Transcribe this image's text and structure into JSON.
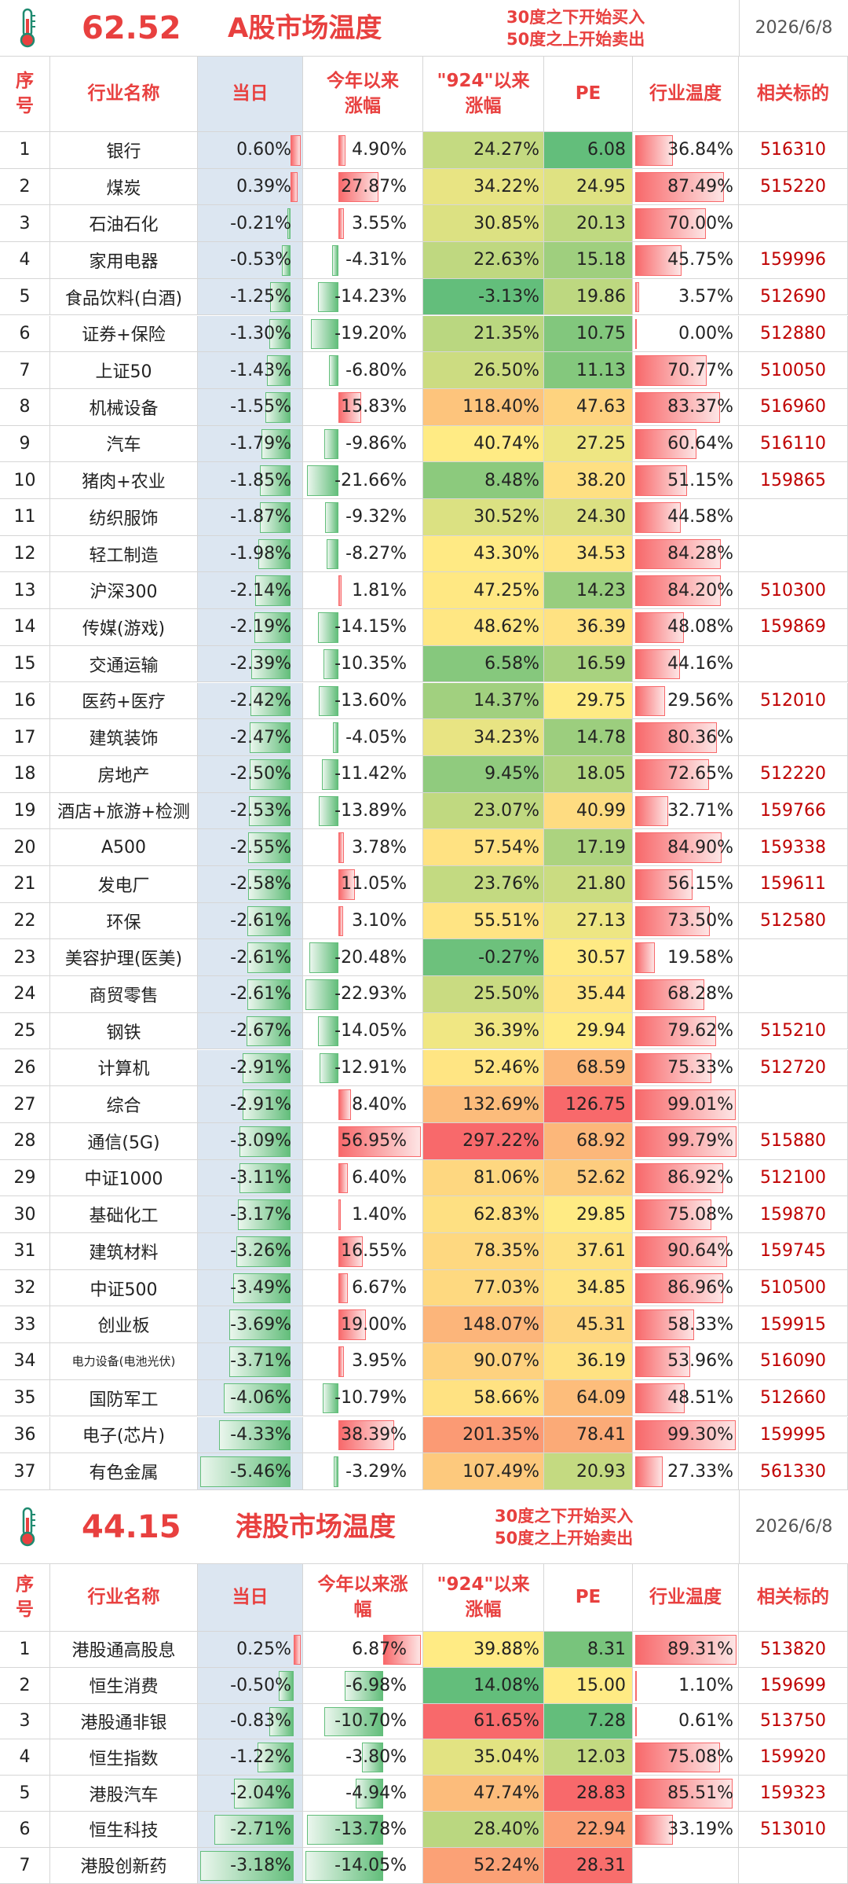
{
  "tables": [
    {
      "header": {
        "temperature": "62.52",
        "title": "A股市场温度",
        "notes": [
          "30度之下开始买入",
          "50度之上开始卖出"
        ],
        "date": "2026/6/8"
      },
      "columns": [
        "序号",
        "行业名称",
        "当日",
        "今年以来涨幅",
        "\"924\"以来涨幅",
        "PE",
        "行业温度",
        "相关标的"
      ],
      "rows": [
        [
          1,
          "银行",
          "0.60%",
          "4.90%",
          "24.27%",
          "6.08",
          "36.84%",
          "516310"
        ],
        [
          2,
          "煤炭",
          "0.39%",
          "27.87%",
          "34.22%",
          "24.95",
          "87.49%",
          "515220"
        ],
        [
          3,
          "石油石化",
          "-0.21%",
          "3.55%",
          "30.85%",
          "20.13",
          "70.00%",
          null
        ],
        [
          4,
          "家用电器",
          "-0.53%",
          "-4.31%",
          "22.63%",
          "15.18",
          "45.75%",
          "159996"
        ],
        [
          5,
          "食品饮料(白酒)",
          "-1.25%",
          "-14.23%",
          "-3.13%",
          "19.86",
          "3.57%",
          "512690"
        ],
        [
          6,
          "证券+保险",
          "-1.30%",
          "-19.20%",
          "21.35%",
          "10.75",
          "0.00%",
          "512880"
        ],
        [
          7,
          "上证50",
          "-1.43%",
          "-6.80%",
          "26.50%",
          "11.13",
          "70.77%",
          "510050"
        ],
        [
          8,
          "机械设备",
          "-1.55%",
          "15.83%",
          "118.40%",
          "47.63",
          "83.37%",
          "516960"
        ],
        [
          9,
          "汽车",
          "-1.79%",
          "-9.86%",
          "40.74%",
          "27.25",
          "60.64%",
          "516110"
        ],
        [
          10,
          "猪肉+农业",
          "-1.85%",
          "-21.66%",
          "8.48%",
          "38.20",
          "51.15%",
          "159865"
        ],
        [
          11,
          "纺织服饰",
          "-1.87%",
          "-9.32%",
          "30.52%",
          "24.30",
          "44.58%",
          null
        ],
        [
          12,
          "轻工制造",
          "-1.98%",
          "-8.27%",
          "43.30%",
          "34.53",
          "84.28%",
          null
        ],
        [
          13,
          "沪深300",
          "-2.14%",
          "1.81%",
          "47.25%",
          "14.23",
          "84.20%",
          "510300"
        ],
        [
          14,
          "传媒(游戏)",
          "-2.19%",
          "-14.15%",
          "48.62%",
          "36.39",
          "48.08%",
          "159869"
        ],
        [
          15,
          "交通运输",
          "-2.39%",
          "-10.35%",
          "6.58%",
          "16.59",
          "44.16%",
          null
        ],
        [
          16,
          "医药+医疗",
          "-2.42%",
          "-13.60%",
          "14.37%",
          "29.75",
          "29.56%",
          "512010"
        ],
        [
          17,
          "建筑装饰",
          "-2.47%",
          "-4.05%",
          "34.23%",
          "14.78",
          "80.36%",
          null
        ],
        [
          18,
          "房地产",
          "-2.50%",
          "-11.42%",
          "9.45%",
          "18.05",
          "72.65%",
          "512220"
        ],
        [
          19,
          "酒店+旅游+检测",
          "-2.53%",
          "-13.89%",
          "23.07%",
          "40.99",
          "32.71%",
          "159766"
        ],
        [
          20,
          "A500",
          "-2.55%",
          "3.78%",
          "57.54%",
          "17.19",
          "84.90%",
          "159338"
        ],
        [
          21,
          "发电厂",
          "-2.58%",
          "11.05%",
          "23.76%",
          "21.80",
          "56.15%",
          "159611"
        ],
        [
          22,
          "环保",
          "-2.61%",
          "3.10%",
          "55.51%",
          "27.13",
          "73.50%",
          "512580"
        ],
        [
          23,
          "美容护理(医美)",
          "-2.61%",
          "-20.48%",
          "-0.27%",
          "30.57",
          "19.58%",
          null
        ],
        [
          24,
          "商贸零售",
          "-2.61%",
          "-22.93%",
          "25.50%",
          "35.44",
          "68.28%",
          null
        ],
        [
          25,
          "钢铁",
          "-2.67%",
          "-14.05%",
          "36.39%",
          "29.94",
          "79.62%",
          "515210"
        ],
        [
          26,
          "计算机",
          "-2.91%",
          "-12.91%",
          "52.46%",
          "68.59",
          "75.33%",
          "512720"
        ],
        [
          27,
          "综合",
          "-2.91%",
          "8.40%",
          "132.69%",
          "126.75",
          "99.01%",
          null
        ],
        [
          28,
          "通信(5G)",
          "-3.09%",
          "56.95%",
          "297.22%",
          "68.92",
          "99.79%",
          "515880"
        ],
        [
          29,
          "中证1000",
          "-3.11%",
          "6.40%",
          "81.06%",
          "52.62",
          "86.92%",
          "512100"
        ],
        [
          30,
          "基础化工",
          "-3.17%",
          "1.40%",
          "62.83%",
          "29.85",
          "75.08%",
          "159870"
        ],
        [
          31,
          "建筑材料",
          "-3.26%",
          "16.55%",
          "78.35%",
          "37.61",
          "90.64%",
          "159745"
        ],
        [
          32,
          "中证500",
          "-3.49%",
          "6.67%",
          "77.03%",
          "34.85",
          "86.96%",
          "510500"
        ],
        [
          33,
          "创业板",
          "-3.69%",
          "19.00%",
          "148.07%",
          "45.31",
          "58.33%",
          "159915"
        ],
        [
          34,
          "电力设备(电池光伏)",
          "-3.71%",
          "3.95%",
          "90.07%",
          "36.19",
          "53.96%",
          "516090"
        ],
        [
          35,
          "国防军工",
          "-4.06%",
          "-10.79%",
          "58.66%",
          "64.09",
          "48.51%",
          "512660"
        ],
        [
          36,
          "电子(芯片)",
          "-4.33%",
          "38.39%",
          "201.35%",
          "78.41",
          "99.30%",
          "159995"
        ],
        [
          37,
          "有色金属",
          "-5.46%",
          "-3.29%",
          "107.49%",
          "20.93",
          "27.33%",
          "561330"
        ]
      ]
    },
    {
      "header": {
        "temperature": "44.15",
        "title": "港股市场温度",
        "notes": [
          "30度之下开始买入",
          "50度之上开始卖出"
        ],
        "date": "2026/6/8"
      },
      "columns": [
        "序号",
        "行业名称",
        "当日",
        "今年以来涨幅",
        "\"924\"以来涨幅",
        "PE",
        "行业温度",
        "相关标的"
      ],
      "rows": [
        [
          1,
          "港股通高股息",
          "0.25%",
          "6.87%",
          "39.88%",
          "8.31",
          "89.31%",
          "513820"
        ],
        [
          2,
          "恒生消费",
          "-0.50%",
          "-6.98%",
          "14.08%",
          "15.00",
          "1.10%",
          "159699"
        ],
        [
          3,
          "港股通非银",
          "-0.83%",
          "-10.70%",
          "61.65%",
          "7.28",
          "0.61%",
          "513750"
        ],
        [
          4,
          "恒生指数",
          "-1.22%",
          "-3.80%",
          "35.04%",
          "12.03",
          "75.08%",
          "159920"
        ],
        [
          5,
          "港股汽车",
          "-2.04%",
          "-4.94%",
          "47.74%",
          "28.83",
          "85.51%",
          "159323"
        ],
        [
          6,
          "恒生科技",
          "-2.71%",
          "-13.78%",
          "28.40%",
          "22.94",
          "33.19%",
          "513010"
        ],
        [
          7,
          "港股创新药",
          "-3.18%",
          "-14.05%",
          "52.24%",
          "28.31",
          null,
          null
        ]
      ]
    }
  ]
}
